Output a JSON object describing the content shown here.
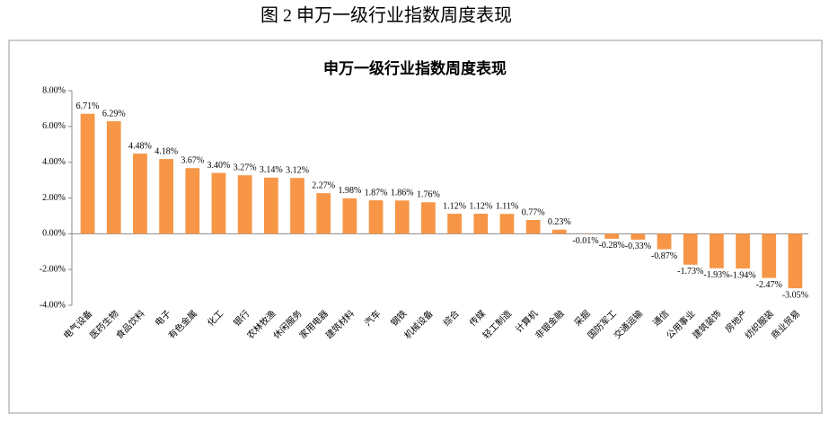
{
  "caption": "图 2 申万一级行业指数周度表现",
  "chart_data": {
    "type": "bar",
    "title": "申万一级行业指数周度表现",
    "categories": [
      "电气设备",
      "医药生物",
      "食品饮料",
      "电子",
      "有色金属",
      "化工",
      "银行",
      "农林牧渔",
      "休闲服务",
      "家用电器",
      "建筑材料",
      "汽车",
      "钢铁",
      "机械设备",
      "综合",
      "传媒",
      "轻工制造",
      "计算机",
      "非银金融",
      "采掘",
      "国防军工",
      "交通运输",
      "通信",
      "公用事业",
      "建筑装饰",
      "房地产",
      "纺织服装",
      "商业贸易"
    ],
    "values": [
      6.71,
      6.29,
      4.48,
      4.18,
      3.67,
      3.4,
      3.27,
      3.14,
      3.12,
      2.27,
      1.98,
      1.87,
      1.86,
      1.76,
      1.12,
      1.12,
      1.11,
      0.77,
      0.23,
      -0.01,
      -0.28,
      -0.33,
      -0.87,
      -1.73,
      -1.93,
      -1.94,
      -2.47,
      -3.05
    ],
    "value_labels": [
      "6.71%",
      "6.29%",
      "4.48%",
      "4.18%",
      "3.67%",
      "3.40%",
      "3.27%",
      "3.14%",
      "3.12%",
      "2.27%",
      "1.98%",
      "1.87%",
      "1.86%",
      "1.76%",
      "1.12%",
      "1.12%",
      "1.11%",
      "0.77%",
      "0.23%",
      "-0.01%",
      "-0.28%",
      "-0.33%",
      "-0.87%",
      "-1.73%",
      "-1.93%",
      "-1.94%",
      "-2.47%",
      "-3.05%"
    ],
    "color": "#f79646",
    "ylim": [
      -4,
      8
    ],
    "yticks": [
      {
        "value": -4,
        "label": "-4.00%"
      },
      {
        "value": -2,
        "label": "-2.00%"
      },
      {
        "value": 0,
        "label": "0.00%"
      },
      {
        "value": 2,
        "label": "2.00%"
      },
      {
        "value": 4,
        "label": "4.00%"
      },
      {
        "value": 6,
        "label": "6.00%"
      },
      {
        "value": 8,
        "label": "8.00%"
      }
    ],
    "grid": false
  }
}
